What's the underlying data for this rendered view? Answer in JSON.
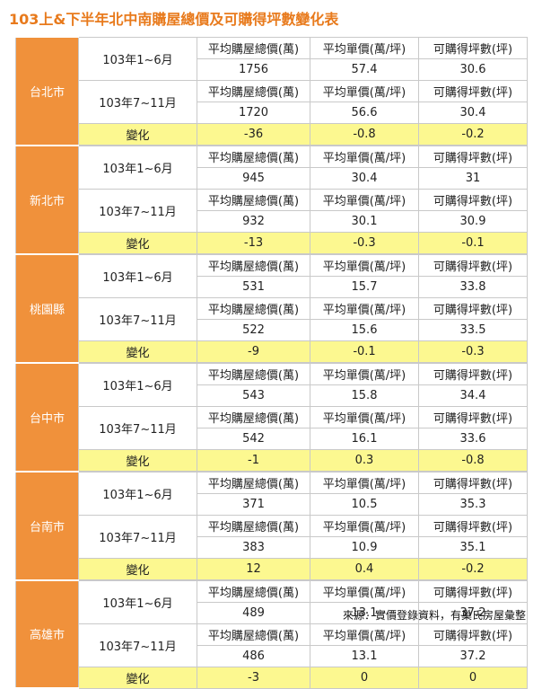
{
  "title": "103上&下半年北中南購屋總價及可購得坪數變化表",
  "headers": [
    "平均購屋總價(萬)",
    "平均單價(萬/坪)",
    "可購得坪數(坪)"
  ],
  "period1": "103年1~6月",
  "period2": "103年7~11月",
  "change_label": "變化",
  "groups": [
    {
      "city": "台北市",
      "h1": [
        "1756",
        "57.4",
        "30.6"
      ],
      "h2": [
        "1720",
        "56.6",
        "30.4"
      ],
      "chg": [
        "-36",
        "-0.8",
        "-0.2"
      ]
    },
    {
      "city": "新北市",
      "h1": [
        "945",
        "30.4",
        "31"
      ],
      "h2": [
        "932",
        "30.1",
        "30.9"
      ],
      "chg": [
        "-13",
        "-0.3",
        "-0.1"
      ]
    },
    {
      "city": "桃園縣",
      "h1": [
        "531",
        "15.7",
        "33.8"
      ],
      "h2": [
        "522",
        "15.6",
        "33.5"
      ],
      "chg": [
        "-9",
        "-0.1",
        "-0.3"
      ]
    },
    {
      "city": "台中市",
      "h1": [
        "543",
        "15.8",
        "34.4"
      ],
      "h2": [
        "542",
        "16.1",
        "33.6"
      ],
      "chg": [
        "-1",
        "0.3",
        "-0.8"
      ]
    },
    {
      "city": "台南市",
      "h1": [
        "371",
        "10.5",
        "35.3"
      ],
      "h2": [
        "383",
        "10.9",
        "35.1"
      ],
      "chg": [
        "12",
        "0.4",
        "-0.2"
      ]
    },
    {
      "city": "高雄市",
      "h1": [
        "489",
        "13.1",
        "37.2"
      ],
      "h2": [
        "486",
        "13.1",
        "37.2"
      ],
      "chg": [
        "-3",
        "0",
        "0"
      ]
    }
  ],
  "source": "來源：實價登錄資料，有巢氏房屋彙整",
  "colors": {
    "title": "#e87a1c",
    "city_bg": "#f0913b",
    "change_bg": "#fcf890",
    "border": "#c9c9c9"
  }
}
